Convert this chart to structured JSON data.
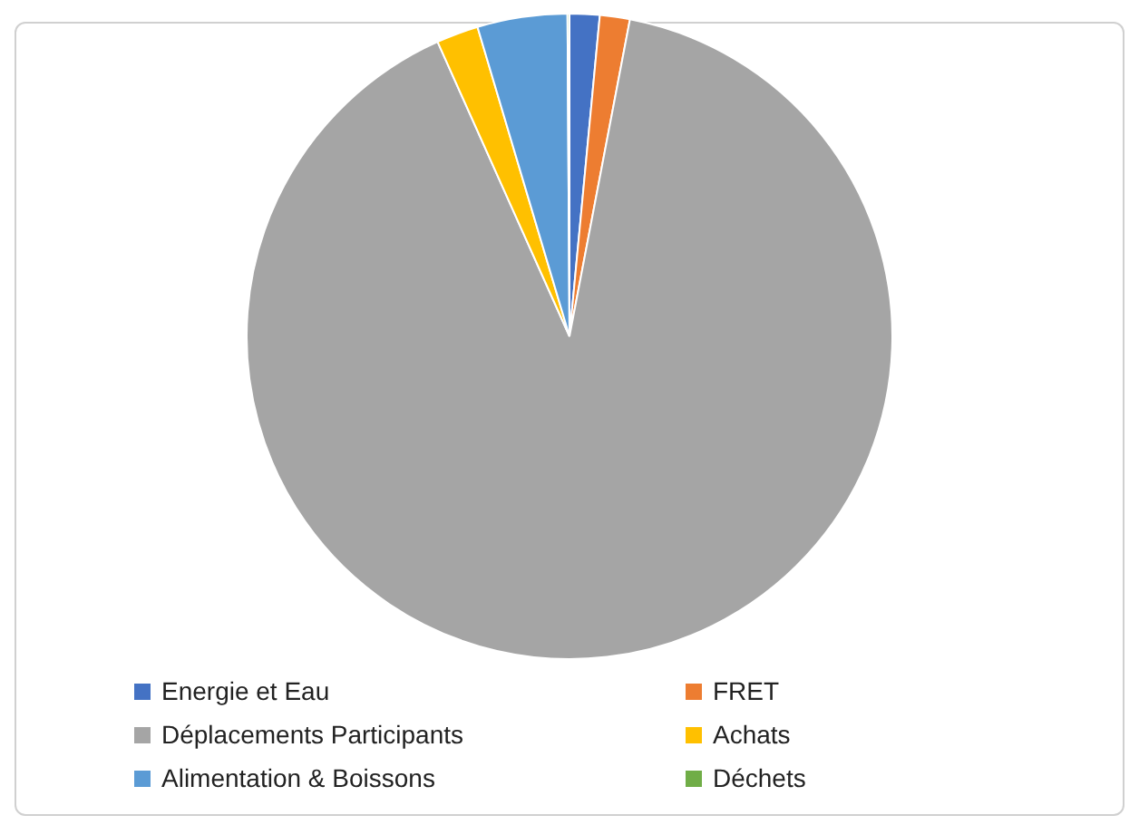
{
  "chart_data": {
    "type": "pie",
    "categories": [
      "Energie et Eau",
      "FRET",
      "Déplacements Participants",
      "Achats",
      "Alimentation & Boissons",
      "Déchets"
    ],
    "values": [
      1.5,
      1.5,
      90.3,
      2.1,
      4.5,
      0.1
    ],
    "colors": [
      "#4472c4",
      "#ed7d31",
      "#a5a5a5",
      "#ffc000",
      "#5b9bd5",
      "#70ad47"
    ],
    "legend": "bottom"
  }
}
